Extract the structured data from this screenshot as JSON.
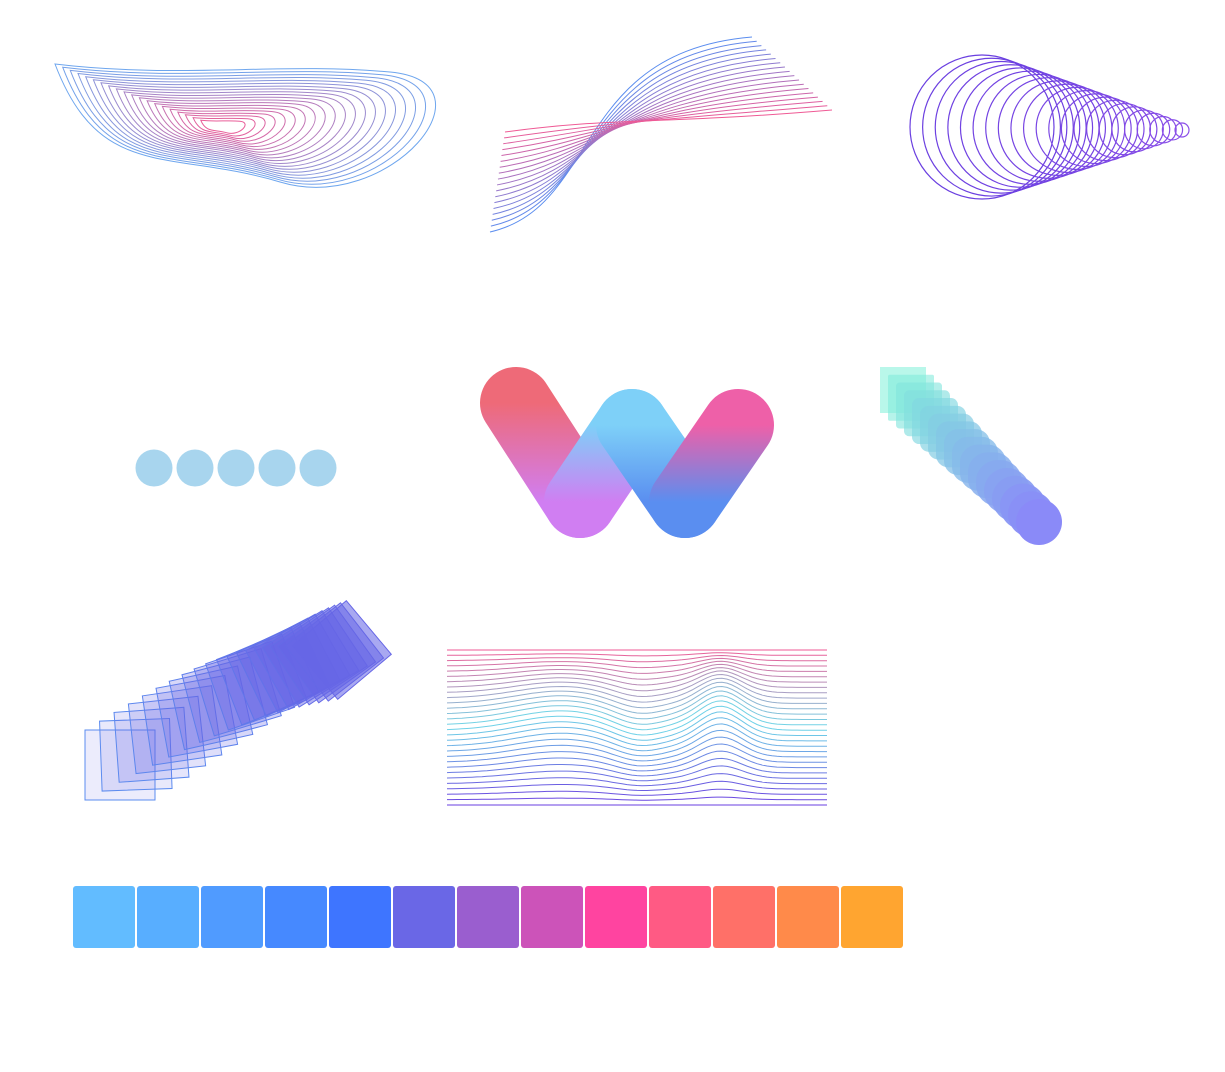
{
  "palette": {
    "blue_light": "#6ea6ee",
    "blue": "#5b8def",
    "purple": "#8a4ee8",
    "pink": "#ef5a95",
    "violet_dark": "#6a3fe0",
    "cyan": "#6fd6e8",
    "indigo": "#6666e6",
    "dot_blue": "#a8d5ee",
    "mint": "#80f0d8",
    "periwinkle": "#8a8af8",
    "w_red": "#ee6a78",
    "w_purple": "#d07ef2",
    "w_sky": "#7ed0f8",
    "w_blue": "#5a8ef0",
    "w_pink": "#ee60a8"
  },
  "artworks": [
    {
      "name": "contour-blob-art"
    },
    {
      "name": "twisted-ribbon-lines-art"
    },
    {
      "name": "circle-tunnel-art"
    },
    {
      "name": "blue-dots-row-art"
    },
    {
      "name": "gradient-w-logo-art"
    },
    {
      "name": "mint-to-violet-trail-art"
    },
    {
      "name": "rotating-squares-fan-art"
    },
    {
      "name": "wavy-line-field-art"
    }
  ],
  "swatches": [
    "#62bcff",
    "#58aeff",
    "#509bff",
    "#4689ff",
    "#3e75ff",
    "#6a67e6",
    "#9a5ecf",
    "#cc53b9",
    "#ff44a0",
    "#ff5a84",
    "#ff7068",
    "#ff8a4a",
    "#ffa530"
  ]
}
